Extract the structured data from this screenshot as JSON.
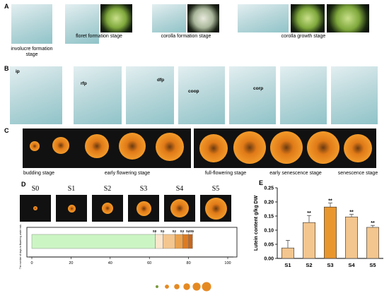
{
  "panel_labels": [
    "A",
    "B",
    "C",
    "D",
    "E"
  ],
  "panel_a": {
    "captions": [
      "involucre formation stage",
      "floret formation stage",
      "corolla formation stage",
      "corolla growth stage"
    ]
  },
  "panel_b": {
    "labels": [
      "ip",
      "rfp",
      "dfp",
      "coop",
      "corp"
    ]
  },
  "panel_c": {
    "captions": [
      "budding stage",
      "early flowering stage",
      "full-flowering stage",
      "early senescence stage",
      "senescence stage"
    ]
  },
  "chart_data": [
    {
      "type": "stage-timeline",
      "stages": [
        "S0",
        "S1",
        "S2",
        "S3",
        "S4",
        "S5"
      ],
      "x": [
        63,
        67,
        73,
        77,
        80,
        82
      ],
      "colors": [
        "#ccf5c4",
        "#fbe6cc",
        "#f3c68f",
        "#eaa24e",
        "#dc7b22",
        "#c9661a"
      ],
      "xlim": [
        0,
        100
      ],
      "xticks": [
        0,
        20,
        40,
        60,
        80,
        100
      ],
      "y_label": "The number of days to flowering under natural light"
    },
    {
      "type": "bar",
      "y_label": "Lutein content g/kg DW",
      "categories": [
        "S1",
        "S2",
        "S3",
        "S4",
        "S5"
      ],
      "values": [
        0.037,
        0.127,
        0.182,
        0.147,
        0.11
      ],
      "errors": [
        0.027,
        0.025,
        0.014,
        0.009,
        0.007
      ],
      "significance": [
        null,
        "**",
        "**",
        "**",
        "**"
      ],
      "colors": [
        "#f3c68f",
        "#f3c68f",
        "#e9962d",
        "#f3c68f",
        "#f3c68f"
      ],
      "ylim": [
        0,
        0.25
      ],
      "yticks": [
        {
          "value": 0,
          "label": "0.00"
        },
        {
          "value": 0.05,
          "label": "0.05"
        },
        {
          "value": 0.1,
          "label": "0.10"
        },
        {
          "value": 0.15,
          "label": "0.15"
        },
        {
          "value": 0.2,
          "label": "0.20"
        },
        {
          "value": 0.25,
          "label": "0.25"
        }
      ]
    }
  ]
}
